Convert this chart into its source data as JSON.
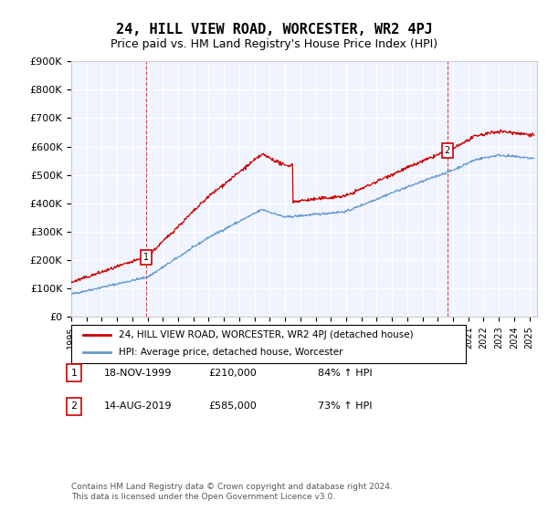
{
  "title": "24, HILL VIEW ROAD, WORCESTER, WR2 4PJ",
  "subtitle": "Price paid vs. HM Land Registry's House Price Index (HPI)",
  "title_fontsize": 11,
  "subtitle_fontsize": 9,
  "ylabel": "",
  "xlabel": "",
  "ylim": [
    0,
    900000
  ],
  "yticks": [
    0,
    100000,
    200000,
    300000,
    400000,
    500000,
    600000,
    700000,
    800000,
    900000
  ],
  "ytick_labels": [
    "£0",
    "£100K",
    "£200K",
    "£300K",
    "£400K",
    "£500K",
    "£600K",
    "£700K",
    "£800K",
    "£900K"
  ],
  "xlim_start": 1995.0,
  "xlim_end": 2025.5,
  "bg_color": "#ffffff",
  "plot_bg_color": "#f0f4ff",
  "grid_color": "#ffffff",
  "red_color": "#cc0000",
  "blue_color": "#6699cc",
  "transaction1_x": 1999.88,
  "transaction1_y": 210000,
  "transaction2_x": 2019.62,
  "transaction2_y": 585000,
  "legend_red_label": "24, HILL VIEW ROAD, WORCESTER, WR2 4PJ (detached house)",
  "legend_blue_label": "HPI: Average price, detached house, Worcester",
  "table_row1": [
    "1",
    "18-NOV-1999",
    "£210,000",
    "84% ↑ HPI"
  ],
  "table_row2": [
    "2",
    "14-AUG-2019",
    "£585,000",
    "73% ↑ HPI"
  ],
  "footer": "Contains HM Land Registry data © Crown copyright and database right 2024.\nThis data is licensed under the Open Government Licence v3.0.",
  "marker_box_color": "#cc0000"
}
